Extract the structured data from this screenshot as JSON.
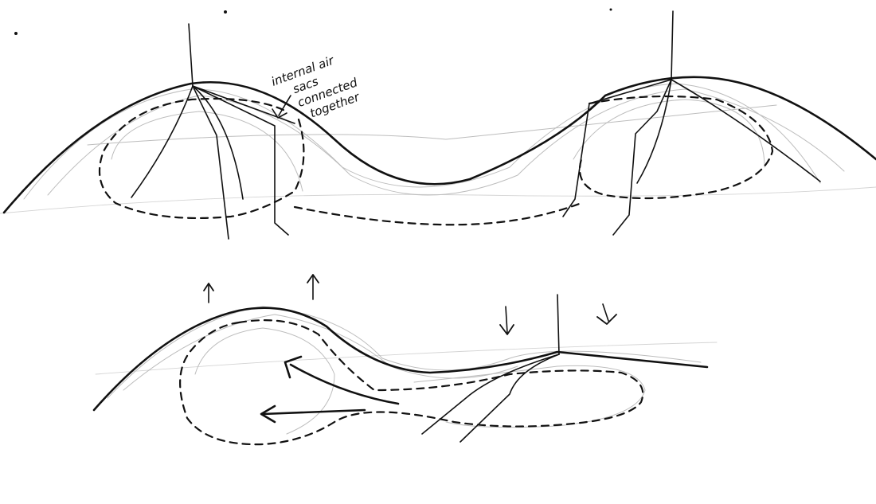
{
  "annotation": {
    "lines": [
      "internal air",
      "sacs",
      "connected",
      "together"
    ]
  },
  "ink_color": "#111111",
  "paper_color": "#ffffff",
  "sketch_color_light": "#bdbdbd"
}
